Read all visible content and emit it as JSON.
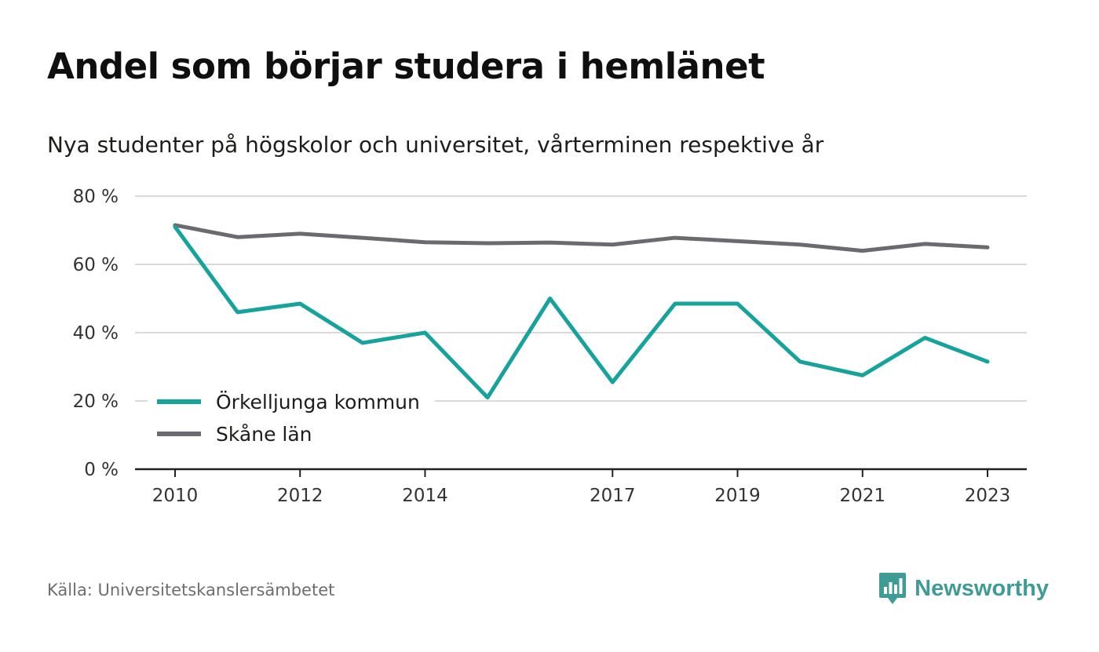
{
  "header": {
    "title": "Andel som börjar studera i hemlänet",
    "subtitle": "Nya studenter på högskolor och universitet, vårterminen respektive år"
  },
  "footer": {
    "source": "Källa: Universitetskanslersämbetet",
    "brand": "Newsworthy",
    "brand_icon": "bar-chart-logo-icon",
    "brand_color": "#3e9b95"
  },
  "chart_data": {
    "type": "line",
    "x": [
      2010,
      2011,
      2012,
      2013,
      2014,
      2015,
      2016,
      2017,
      2018,
      2019,
      2020,
      2021,
      2022,
      2023
    ],
    "x_tick_labels": [
      "2010",
      "2012",
      "2014",
      "2017",
      "2019",
      "2021",
      "2023"
    ],
    "y_tick_labels": [
      "0 %",
      "20 %",
      "40 %",
      "60 %",
      "80 %"
    ],
    "ylim": [
      0,
      80
    ],
    "grid": true,
    "legend_position": "bottom-left",
    "series": [
      {
        "name": "Örkelljunga kommun",
        "color": "#16a39b",
        "values": [
          71,
          46,
          48.5,
          37,
          40,
          21,
          50,
          25.5,
          48.5,
          48.5,
          31.5,
          27.5,
          38.5,
          31.5
        ]
      },
      {
        "name": "Skåne län",
        "color": "#6b6b6f",
        "values": [
          71.5,
          68,
          69,
          67.8,
          66.5,
          66.2,
          66.4,
          65.8,
          67.8,
          66.8,
          65.8,
          64,
          66,
          65
        ]
      }
    ]
  }
}
